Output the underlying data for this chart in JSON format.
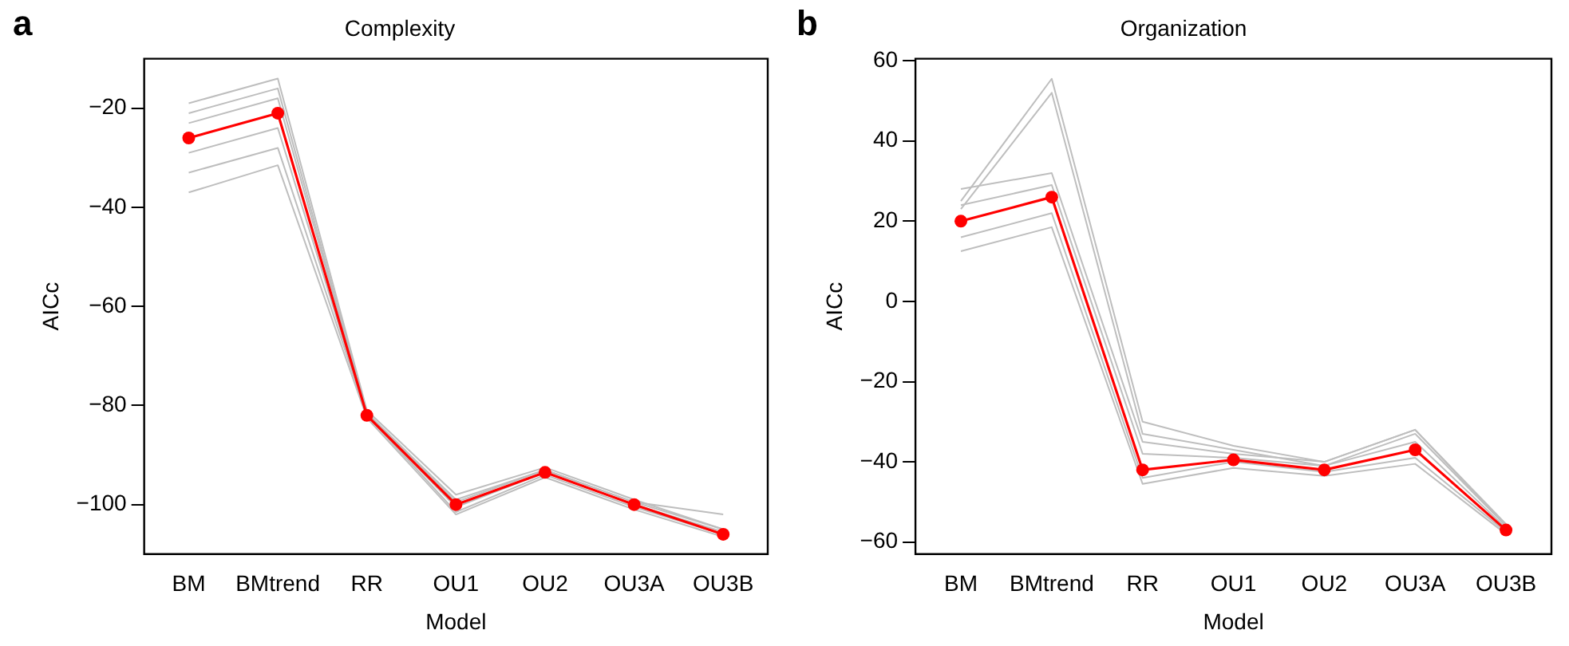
{
  "chart_data": [
    {
      "type": "line",
      "title": "Complexity",
      "xlabel": "Model",
      "ylabel": "AICc",
      "annotations": [
        "a"
      ],
      "categories": [
        "BM",
        "BMtrend",
        "RR",
        "OU1",
        "OU2",
        "OU3A",
        "OU3B"
      ],
      "ylim": [
        -110,
        -10
      ],
      "yticks": [
        {
          "value": -20,
          "label": "−20"
        },
        {
          "value": -40,
          "label": "−40"
        },
        {
          "value": -60,
          "label": "−60"
        },
        {
          "value": -80,
          "label": "−80"
        },
        {
          "value": -100,
          "label": "−100"
        }
      ],
      "grid": false,
      "legend": false,
      "line_style": "solid",
      "series": [
        {
          "color": "#bebebe",
          "marker": "none",
          "values": [
            -19,
            -14,
            -81,
            -98,
            -92.5,
            -99,
            -105
          ]
        },
        {
          "color": "#bebebe",
          "marker": "none",
          "values": [
            -21,
            -16,
            -81.5,
            -99.5,
            -93,
            -99.5,
            -105
          ]
        },
        {
          "color": "#bebebe",
          "marker": "none",
          "values": [
            -23,
            -18,
            -81.5,
            -99,
            -93,
            -99.5,
            -102
          ]
        },
        {
          "color": "#bebebe",
          "marker": "none",
          "values": [
            -29,
            -24,
            -82,
            -100.5,
            -93.5,
            -100,
            -105.5
          ]
        },
        {
          "color": "#bebebe",
          "marker": "none",
          "values": [
            -33,
            -28,
            -82,
            -101.5,
            -94,
            -100.5,
            -106
          ]
        },
        {
          "color": "#bebebe",
          "marker": "none",
          "values": [
            -37,
            -31.5,
            -82.5,
            -102,
            -94.5,
            -101,
            -106.5
          ]
        },
        {
          "color": "#ff0000",
          "marker": "circle",
          "values": [
            -26,
            -21,
            -82,
            -100,
            -93.5,
            -100,
            -106
          ]
        }
      ]
    },
    {
      "type": "line",
      "title": "Organization",
      "xlabel": "Model",
      "ylabel": "AICc",
      "annotations": [
        "b"
      ],
      "categories": [
        "BM",
        "BMtrend",
        "RR",
        "OU1",
        "OU2",
        "OU3A",
        "OU3B"
      ],
      "ylim": [
        -63,
        60.5
      ],
      "yticks": [
        {
          "value": -60,
          "label": "−60"
        },
        {
          "value": -40,
          "label": "−40"
        },
        {
          "value": -20,
          "label": "−20"
        },
        0,
        20,
        40,
        60
      ],
      "grid": false,
      "legend": false,
      "line_style": "solid",
      "series": [
        {
          "color": "#bebebe",
          "marker": "none",
          "values": [
            25,
            55.5,
            -30,
            -36,
            -40,
            -32,
            -55.5
          ]
        },
        {
          "color": "#bebebe",
          "marker": "none",
          "values": [
            23,
            52,
            -33,
            -37,
            -41,
            -33,
            -56
          ]
        },
        {
          "color": "#bebebe",
          "marker": "none",
          "values": [
            28,
            32,
            -35,
            -38,
            -40,
            -32,
            -56
          ]
        },
        {
          "color": "#bebebe",
          "marker": "none",
          "values": [
            24,
            29,
            -38,
            -39,
            -41,
            -35,
            -56.5
          ]
        },
        {
          "color": "#bebebe",
          "marker": "none",
          "values": [
            16,
            22,
            -44,
            -40,
            -42.5,
            -39,
            -57.5
          ]
        },
        {
          "color": "#bebebe",
          "marker": "none",
          "values": [
            12.5,
            18.5,
            -45.5,
            -41.5,
            -43.5,
            -40.5,
            -58
          ]
        },
        {
          "color": "#ff0000",
          "marker": "circle",
          "values": [
            20,
            26,
            -42,
            -39.5,
            -42,
            -37,
            -57
          ]
        }
      ]
    }
  ]
}
